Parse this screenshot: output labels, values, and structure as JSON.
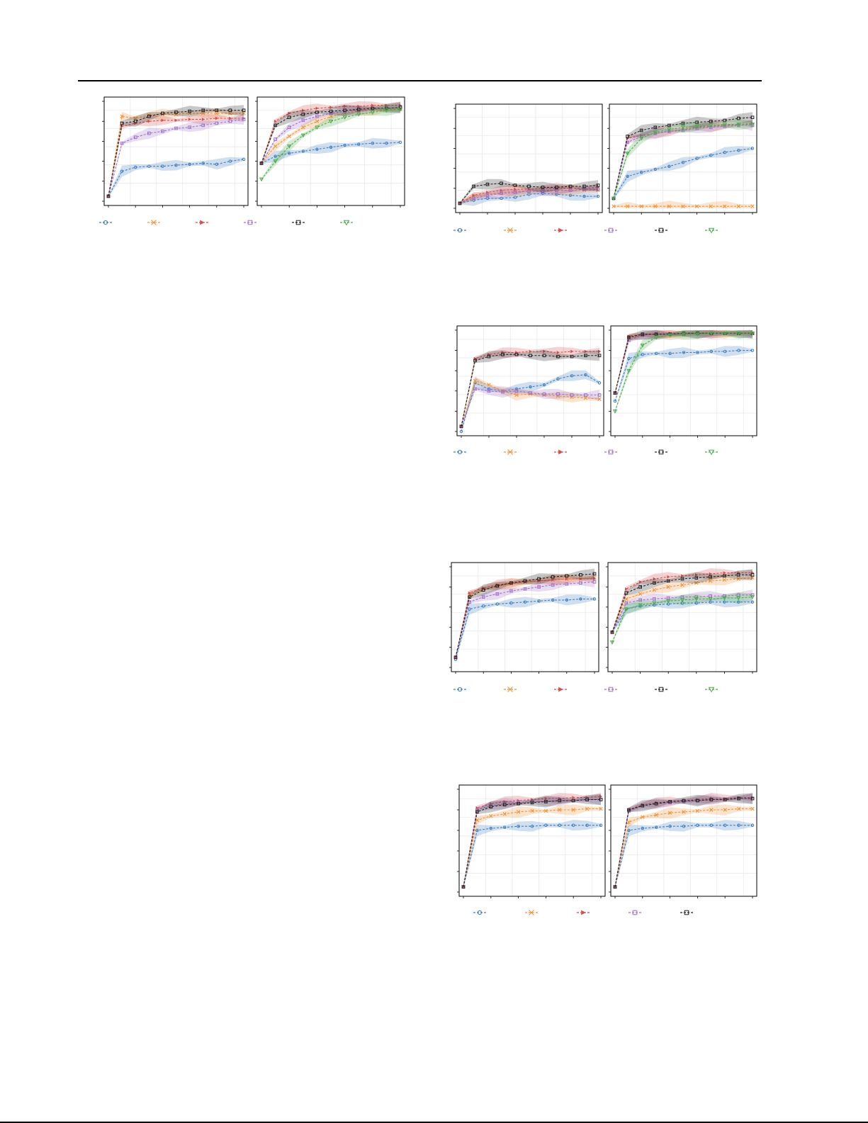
{
  "page": {
    "bg_color": "#ffffff"
  },
  "series_styles": [
    {
      "key": "s1",
      "color": "#3f7fbf",
      "marker": "circle"
    },
    {
      "key": "s2",
      "color": "#f0943a",
      "marker": "x"
    },
    {
      "key": "s3",
      "color": "#d64f4f",
      "marker": "tri-right"
    },
    {
      "key": "s4",
      "color": "#9f72c8",
      "marker": "square"
    },
    {
      "key": "s5",
      "color": "#222222",
      "marker": "square"
    },
    {
      "key": "s6",
      "color": "#4cab4c",
      "marker": "tri-down"
    }
  ],
  "chart_data": [
    {
      "type": "line",
      "group": "A",
      "panel": "left",
      "ylim": [
        0,
        1
      ],
      "grid": true,
      "bands": true,
      "series": [
        {
          "style": "s1",
          "values": [
            0.05,
            0.3,
            0.34,
            0.35,
            0.35,
            0.36,
            0.37,
            0.38,
            0.37,
            0.4,
            0.42
          ]
        },
        {
          "style": "s2",
          "values": [
            0.05,
            0.85,
            0.83,
            0.86,
            0.87,
            0.87,
            0.88,
            0.88,
            0.88,
            0.88,
            0.88
          ]
        },
        {
          "style": "s3",
          "values": [
            0.05,
            0.75,
            0.78,
            0.8,
            0.81,
            0.81,
            0.82,
            0.82,
            0.83,
            0.83,
            0.83
          ]
        },
        {
          "style": "s4",
          "values": [
            0.05,
            0.58,
            0.64,
            0.68,
            0.7,
            0.73,
            0.74,
            0.76,
            0.78,
            0.8,
            0.82
          ]
        },
        {
          "style": "s5",
          "values": [
            0.05,
            0.78,
            0.8,
            0.85,
            0.88,
            0.89,
            0.9,
            0.91,
            0.91,
            0.91,
            0.91
          ]
        }
      ]
    },
    {
      "type": "line",
      "group": "A",
      "panel": "right",
      "ylim": [
        0,
        1
      ],
      "grid": true,
      "bands": true,
      "series": [
        {
          "style": "s1",
          "values": [
            0.38,
            0.45,
            0.48,
            0.5,
            0.52,
            0.54,
            0.56,
            0.57,
            0.58,
            0.58,
            0.59
          ]
        },
        {
          "style": "s2",
          "values": [
            0.38,
            0.55,
            0.65,
            0.74,
            0.8,
            0.85,
            0.88,
            0.9,
            0.91,
            0.92,
            0.92
          ]
        },
        {
          "style": "s3",
          "values": [
            0.38,
            0.8,
            0.88,
            0.91,
            0.93,
            0.94,
            0.95,
            0.95,
            0.96,
            0.96,
            0.96
          ]
        },
        {
          "style": "s4",
          "values": [
            0.38,
            0.62,
            0.74,
            0.81,
            0.85,
            0.88,
            0.9,
            0.91,
            0.92,
            0.93,
            0.93
          ]
        },
        {
          "style": "s5",
          "values": [
            0.38,
            0.76,
            0.84,
            0.87,
            0.89,
            0.9,
            0.91,
            0.92,
            0.93,
            0.93,
            0.94
          ]
        },
        {
          "style": "s6",
          "values": [
            0.22,
            0.4,
            0.55,
            0.66,
            0.74,
            0.8,
            0.84,
            0.87,
            0.89,
            0.91,
            0.92
          ]
        }
      ]
    },
    {
      "type": "line",
      "group": "B",
      "panel": "left",
      "ylim": [
        0,
        1
      ],
      "grid": true,
      "bands": true,
      "series": [
        {
          "style": "s1",
          "values": [
            0.05,
            0.08,
            0.1,
            0.1,
            0.11,
            0.14,
            0.15,
            0.14,
            0.13,
            0.12,
            0.12
          ]
        },
        {
          "style": "s2",
          "values": [
            0.05,
            0.12,
            0.14,
            0.16,
            0.17,
            0.17,
            0.18,
            0.18,
            0.18,
            0.18,
            0.18
          ]
        },
        {
          "style": "s3",
          "values": [
            0.05,
            0.13,
            0.16,
            0.18,
            0.19,
            0.19,
            0.2,
            0.2,
            0.2,
            0.2,
            0.21
          ]
        },
        {
          "style": "s4",
          "values": [
            0.05,
            0.1,
            0.13,
            0.15,
            0.16,
            0.17,
            0.17,
            0.18,
            0.18,
            0.19,
            0.19
          ]
        },
        {
          "style": "s5",
          "values": [
            0.05,
            0.22,
            0.24,
            0.25,
            0.23,
            0.22,
            0.21,
            0.21,
            0.22,
            0.22,
            0.23
          ]
        }
      ]
    },
    {
      "type": "line",
      "group": "B",
      "panel": "right",
      "ylim": [
        0,
        1
      ],
      "grid": true,
      "bands": true,
      "series": [
        {
          "style": "s1",
          "values": [
            0.1,
            0.32,
            0.36,
            0.39,
            0.42,
            0.46,
            0.5,
            0.53,
            0.56,
            0.58,
            0.6
          ]
        },
        {
          "style": "s2",
          "values": [
            0.02,
            0.02,
            0.02,
            0.02,
            0.02,
            0.02,
            0.02,
            0.02,
            0.02,
            0.02,
            0.02
          ]
        },
        {
          "style": "s3",
          "values": [
            0.1,
            0.7,
            0.73,
            0.75,
            0.77,
            0.79,
            0.81,
            0.82,
            0.83,
            0.84,
            0.85
          ]
        },
        {
          "style": "s4",
          "values": [
            0.1,
            0.66,
            0.72,
            0.75,
            0.77,
            0.78,
            0.8,
            0.81,
            0.82,
            0.83,
            0.83
          ]
        },
        {
          "style": "s5",
          "values": [
            0.1,
            0.72,
            0.78,
            0.81,
            0.83,
            0.85,
            0.86,
            0.87,
            0.88,
            0.9,
            0.91
          ]
        },
        {
          "style": "s6",
          "values": [
            0.1,
            0.55,
            0.7,
            0.76,
            0.79,
            0.81,
            0.82,
            0.83,
            0.84,
            0.84,
            0.84
          ]
        }
      ]
    },
    {
      "type": "line",
      "group": "C",
      "panel": "left",
      "ylim": [
        0,
        1
      ],
      "grid": true,
      "bands": true,
      "series": [
        {
          "style": "s1",
          "values": [
            0.0,
            0.48,
            0.42,
            0.4,
            0.42,
            0.44,
            0.46,
            0.52,
            0.55,
            0.56,
            0.48
          ]
        },
        {
          "style": "s2",
          "values": [
            0.05,
            0.5,
            0.46,
            0.4,
            0.36,
            0.37,
            0.36,
            0.35,
            0.34,
            0.33,
            0.32
          ]
        },
        {
          "style": "s3",
          "values": [
            0.05,
            0.72,
            0.76,
            0.78,
            0.78,
            0.79,
            0.79,
            0.78,
            0.79,
            0.79,
            0.79
          ]
        },
        {
          "style": "s4",
          "values": [
            0.05,
            0.42,
            0.4,
            0.39,
            0.4,
            0.38,
            0.37,
            0.37,
            0.36,
            0.36,
            0.36
          ]
        },
        {
          "style": "s5",
          "values": [
            0.05,
            0.7,
            0.74,
            0.76,
            0.76,
            0.75,
            0.75,
            0.74,
            0.74,
            0.75,
            0.75
          ]
        }
      ]
    },
    {
      "type": "line",
      "group": "C",
      "panel": "right",
      "ylim": [
        0,
        1
      ],
      "grid": true,
      "bands": true,
      "series": [
        {
          "style": "s1",
          "values": [
            0.3,
            0.72,
            0.76,
            0.77,
            0.77,
            0.78,
            0.78,
            0.79,
            0.79,
            0.8,
            0.8
          ]
        },
        {
          "style": "s2",
          "values": [
            0.38,
            0.92,
            0.95,
            0.96,
            0.96,
            0.96,
            0.97,
            0.97,
            0.97,
            0.97,
            0.97
          ]
        },
        {
          "style": "s3",
          "values": [
            0.38,
            0.94,
            0.96,
            0.96,
            0.97,
            0.97,
            0.97,
            0.97,
            0.97,
            0.97,
            0.97
          ]
        },
        {
          "style": "s4",
          "values": [
            0.38,
            0.9,
            0.95,
            0.96,
            0.96,
            0.96,
            0.97,
            0.97,
            0.97,
            0.97,
            0.97
          ]
        },
        {
          "style": "s5",
          "values": [
            0.38,
            0.93,
            0.96,
            0.96,
            0.96,
            0.97,
            0.97,
            0.97,
            0.97,
            0.97,
            0.97
          ]
        },
        {
          "style": "s6",
          "values": [
            0.2,
            0.6,
            0.85,
            0.93,
            0.95,
            0.96,
            0.96,
            0.97,
            0.97,
            0.97,
            0.97
          ]
        }
      ]
    },
    {
      "type": "line",
      "group": "D",
      "panel": "left",
      "ylim": [
        0,
        1
      ],
      "grid": true,
      "bands": true,
      "series": [
        {
          "style": "s1",
          "values": [
            0.08,
            0.58,
            0.61,
            0.63,
            0.64,
            0.65,
            0.66,
            0.67,
            0.67,
            0.68,
            0.68
          ]
        },
        {
          "style": "s2",
          "values": [
            0.1,
            0.72,
            0.78,
            0.81,
            0.83,
            0.85,
            0.86,
            0.87,
            0.88,
            0.88,
            0.89
          ]
        },
        {
          "style": "s3",
          "values": [
            0.1,
            0.74,
            0.79,
            0.82,
            0.84,
            0.85,
            0.86,
            0.87,
            0.88,
            0.88,
            0.88
          ]
        },
        {
          "style": "s4",
          "values": [
            0.1,
            0.65,
            0.7,
            0.73,
            0.76,
            0.78,
            0.8,
            0.82,
            0.83,
            0.84,
            0.85
          ]
        },
        {
          "style": "s5",
          "values": [
            0.1,
            0.7,
            0.77,
            0.81,
            0.84,
            0.86,
            0.88,
            0.9,
            0.91,
            0.92,
            0.93
          ]
        }
      ]
    },
    {
      "type": "line",
      "group": "D",
      "panel": "right",
      "ylim": [
        0,
        1
      ],
      "grid": true,
      "bands": true,
      "series": [
        {
          "style": "s1",
          "values": [
            0.35,
            0.58,
            0.61,
            0.62,
            0.63,
            0.64,
            0.64,
            0.65,
            0.65,
            0.65,
            0.65
          ]
        },
        {
          "style": "s2",
          "values": [
            0.35,
            0.68,
            0.73,
            0.77,
            0.8,
            0.82,
            0.84,
            0.86,
            0.87,
            0.88,
            0.89
          ]
        },
        {
          "style": "s3",
          "values": [
            0.35,
            0.78,
            0.85,
            0.88,
            0.9,
            0.91,
            0.92,
            0.93,
            0.94,
            0.94,
            0.94
          ]
        },
        {
          "style": "s4",
          "values": [
            0.35,
            0.64,
            0.67,
            0.68,
            0.69,
            0.7,
            0.7,
            0.71,
            0.71,
            0.72,
            0.72
          ]
        },
        {
          "style": "s5",
          "values": [
            0.35,
            0.74,
            0.8,
            0.84,
            0.86,
            0.88,
            0.89,
            0.9,
            0.91,
            0.92,
            0.92
          ]
        },
        {
          "style": "s6",
          "values": [
            0.25,
            0.58,
            0.62,
            0.64,
            0.66,
            0.67,
            0.68,
            0.68,
            0.69,
            0.69,
            0.7
          ]
        }
      ]
    },
    {
      "type": "line",
      "group": "E",
      "panel": "left",
      "ylim": [
        0,
        1
      ],
      "grid": true,
      "bands": true,
      "series": [
        {
          "style": "s1",
          "values": [
            0.05,
            0.6,
            0.62,
            0.63,
            0.64,
            0.64,
            0.65,
            0.65,
            0.65,
            0.65,
            0.65
          ]
        },
        {
          "style": "s2",
          "values": [
            0.05,
            0.7,
            0.74,
            0.76,
            0.78,
            0.79,
            0.79,
            0.8,
            0.8,
            0.81,
            0.81
          ]
        },
        {
          "style": "s3",
          "values": [
            0.05,
            0.82,
            0.86,
            0.88,
            0.89,
            0.9,
            0.91,
            0.91,
            0.92,
            0.92,
            0.93
          ]
        },
        {
          "style": "s4",
          "values": [
            0.05,
            0.8,
            0.84,
            0.86,
            0.87,
            0.88,
            0.88,
            0.89,
            0.89,
            0.9,
            0.9
          ]
        },
        {
          "style": "s5",
          "values": [
            0.05,
            0.78,
            0.83,
            0.85,
            0.86,
            0.87,
            0.88,
            0.89,
            0.89,
            0.9,
            0.9
          ]
        }
      ]
    },
    {
      "type": "line",
      "group": "E",
      "panel": "right",
      "ylim": [
        0,
        1
      ],
      "grid": true,
      "bands": true,
      "series": [
        {
          "style": "s1",
          "values": [
            0.05,
            0.6,
            0.62,
            0.63,
            0.64,
            0.64,
            0.65,
            0.65,
            0.65,
            0.65,
            0.65
          ]
        },
        {
          "style": "s2",
          "values": [
            0.05,
            0.68,
            0.73,
            0.75,
            0.77,
            0.78,
            0.79,
            0.8,
            0.8,
            0.81,
            0.81
          ]
        },
        {
          "style": "s3",
          "values": [
            0.05,
            0.8,
            0.85,
            0.87,
            0.88,
            0.89,
            0.9,
            0.91,
            0.91,
            0.92,
            0.92
          ]
        },
        {
          "style": "s4",
          "values": [
            0.05,
            0.79,
            0.84,
            0.86,
            0.87,
            0.88,
            0.89,
            0.9,
            0.9,
            0.91,
            0.91
          ]
        },
        {
          "style": "s5",
          "values": [
            0.05,
            0.8,
            0.84,
            0.86,
            0.88,
            0.89,
            0.89,
            0.9,
            0.9,
            0.91,
            0.91
          ]
        }
      ]
    }
  ],
  "legends": {
    "A": [
      "s1",
      "s2",
      "s3",
      "s4",
      "s5",
      "s6"
    ],
    "B": [
      "s1",
      "s2",
      "s3",
      "s4",
      "s5",
      "s6"
    ],
    "C": [
      "s1",
      "s2",
      "s3",
      "s4",
      "s5",
      "s6"
    ],
    "D": [
      "s1",
      "s2",
      "s3",
      "s4",
      "s5",
      "s6"
    ],
    "E": [
      "s1",
      "s2",
      "s3",
      "s4",
      "s5"
    ]
  }
}
